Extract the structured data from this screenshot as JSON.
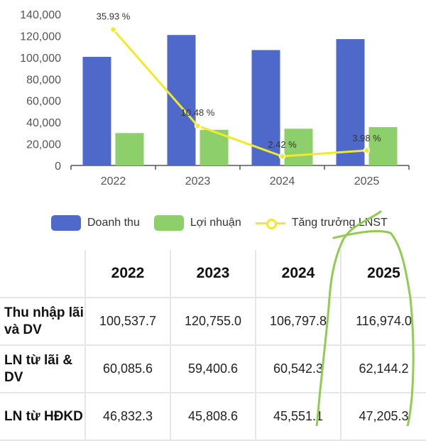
{
  "chart_data": {
    "type": "bar",
    "categories": [
      "2022",
      "2023",
      "2024",
      "2025"
    ],
    "series": [
      {
        "name": "Doanh thu",
        "type": "bar",
        "values": [
          100537.7,
          120755.0,
          106797.8,
          116974.0
        ]
      },
      {
        "name": "Lợi nhuận",
        "type": "bar",
        "values": [
          30000,
          33000,
          34000,
          35500
        ]
      },
      {
        "name": "Tăng trưởng LNST",
        "type": "line",
        "values": [
          35.93,
          10.48,
          2.42,
          3.98
        ],
        "labels": [
          "35.93 %",
          "10.48 %",
          "2.42 %",
          "3.98 %"
        ]
      }
    ],
    "y_ticks": [
      "0",
      "20,000",
      "40,000",
      "60,000",
      "80,000",
      "100,000",
      "120,000",
      "140,000"
    ],
    "ylim": [
      0,
      140000
    ],
    "line_ylim": [
      0,
      40
    ],
    "grid": false,
    "legend_position": "bottom"
  },
  "colors": {
    "revenue": "#4e69c9",
    "profit": "#8dcf6a",
    "growth": "#eeeb2a",
    "axis": "#555555",
    "scribble": "#8fcc4f"
  },
  "legend": {
    "revenue": "Doanh thu",
    "profit": "Lợi nhuận",
    "growth": "Tăng trưởng LNST"
  },
  "table": {
    "headers": [
      "",
      "2022",
      "2023",
      "2024",
      "2025"
    ],
    "rows": [
      {
        "label": "Thu nhập lãi và DV",
        "values": [
          "100,537.7",
          "120,755.0",
          "106,797.8",
          "116,974.0"
        ]
      },
      {
        "label": "LN từ lãi & DV",
        "values": [
          "60,085.6",
          "59,400.6",
          "60,542.3",
          "62,144.2"
        ]
      },
      {
        "label": "LN từ HĐKD",
        "values": [
          "46,832.3",
          "45,808.6",
          "45,551.1",
          "47,205.3"
        ]
      }
    ]
  }
}
